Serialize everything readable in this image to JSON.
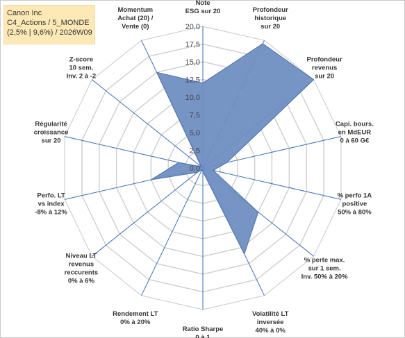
{
  "header": {
    "line1": "Canon Inc",
    "line2": "C4_Actions / 5_MONDE",
    "line3": "(2,5% | 9,6%) / 2026W09"
  },
  "colors": {
    "fill": "#6f8fc2",
    "stroke": "#4a6fa8",
    "grid": "#d0d0d0",
    "spoke": "#3f6fb7",
    "title_bg": "#fde9b6"
  },
  "chart_data": {
    "type": "radar",
    "title": "",
    "rlim": [
      0,
      20
    ],
    "ticks": [
      "0,0",
      "2,5",
      "5,0",
      "7,5",
      "10,0",
      "12,5",
      "15,0",
      "17,5",
      "20,0"
    ],
    "grid": true,
    "categories": [
      "Note ESG sur 20",
      "Profondeur historique sur 20",
      "Profondeur revenus sur 20",
      "Capi. bours. en MdEUR 0 à 60 G€",
      "% perfo 1A positive 50% à 80%",
      "% perte max. sur 1 sem. Inv. 50% à 20%",
      "Volatilité LT inversée 40% à 0%",
      "Ratio Sharpe 0 à 1",
      "Rendement LT 0% à 20%",
      "Niveau LT revenus reccurents 0% à 6%",
      "Perfo. LT vs index -8% à 12%",
      "Régularité croissance sur 20",
      "Z-score 10 sem. Inv. 2 à -2",
      "Momentum Achat (20) / Vente (0)"
    ],
    "labels": [
      [
        "Note",
        "ESG sur 20"
      ],
      [
        "Profondeur",
        "historique",
        "sur 20"
      ],
      [
        "Profondeur",
        "revenus",
        "sur 20"
      ],
      [
        "Capi. bours.",
        "en MdEUR",
        "0 à 60 G€"
      ],
      [
        "% perfo 1A",
        "positive",
        "50% à 80%"
      ],
      [
        "% perte max.",
        "sur 1 sem.",
        "Inv. 50% à 20%"
      ],
      [
        "Volatilité LT",
        "inversée",
        "40% à 0%"
      ],
      [
        "Ratio Sharpe",
        "0 à 1"
      ],
      [
        "Rendement LT",
        "0% à 20%"
      ],
      [
        "Niveau LT",
        "revenus",
        "reccurents",
        "0% à 6%"
      ],
      [
        "Perfo. LT",
        "vs index",
        "-8% à 12%"
      ],
      [
        "Régularité",
        "croissance",
        "sur 20"
      ],
      [
        "Z-score",
        "10 sem.",
        "Inv. 2 à -2"
      ],
      [
        "Momentum",
        "Achat (20) /",
        "Vente (0)"
      ]
    ],
    "series": [
      {
        "values": [
          12.0,
          19.5,
          20.0,
          3.5,
          1.5,
          10.0,
          13.5,
          0.5,
          0.3,
          1.0,
          7.5,
          3.5,
          0.3,
          15.0
        ]
      }
    ]
  }
}
